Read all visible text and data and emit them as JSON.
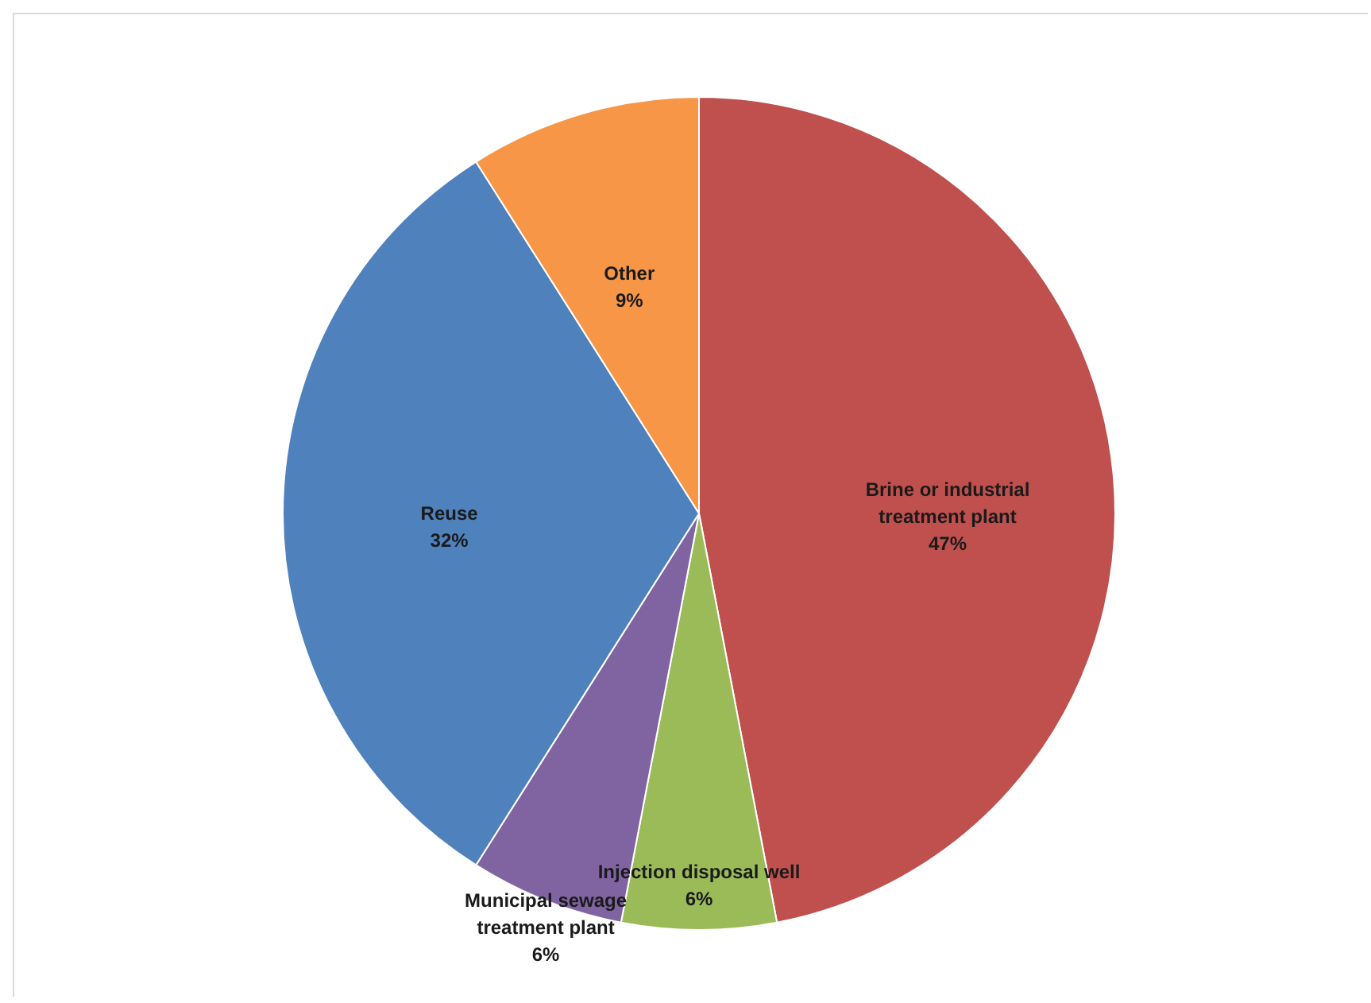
{
  "chart_data": {
    "type": "pie",
    "categories": [
      "Brine or industrial treatment plant",
      "Injection disposal well",
      "Municipal sewage treatment plant",
      "Reuse",
      "Other"
    ],
    "values": [
      47,
      6,
      6,
      32,
      9
    ],
    "colors": [
      "#c0504d",
      "#9bbb59",
      "#8064a2",
      "#4f81bd",
      "#f79646"
    ],
    "value_labels": [
      "47%",
      "6%",
      "6%",
      "32%",
      "9%"
    ]
  }
}
